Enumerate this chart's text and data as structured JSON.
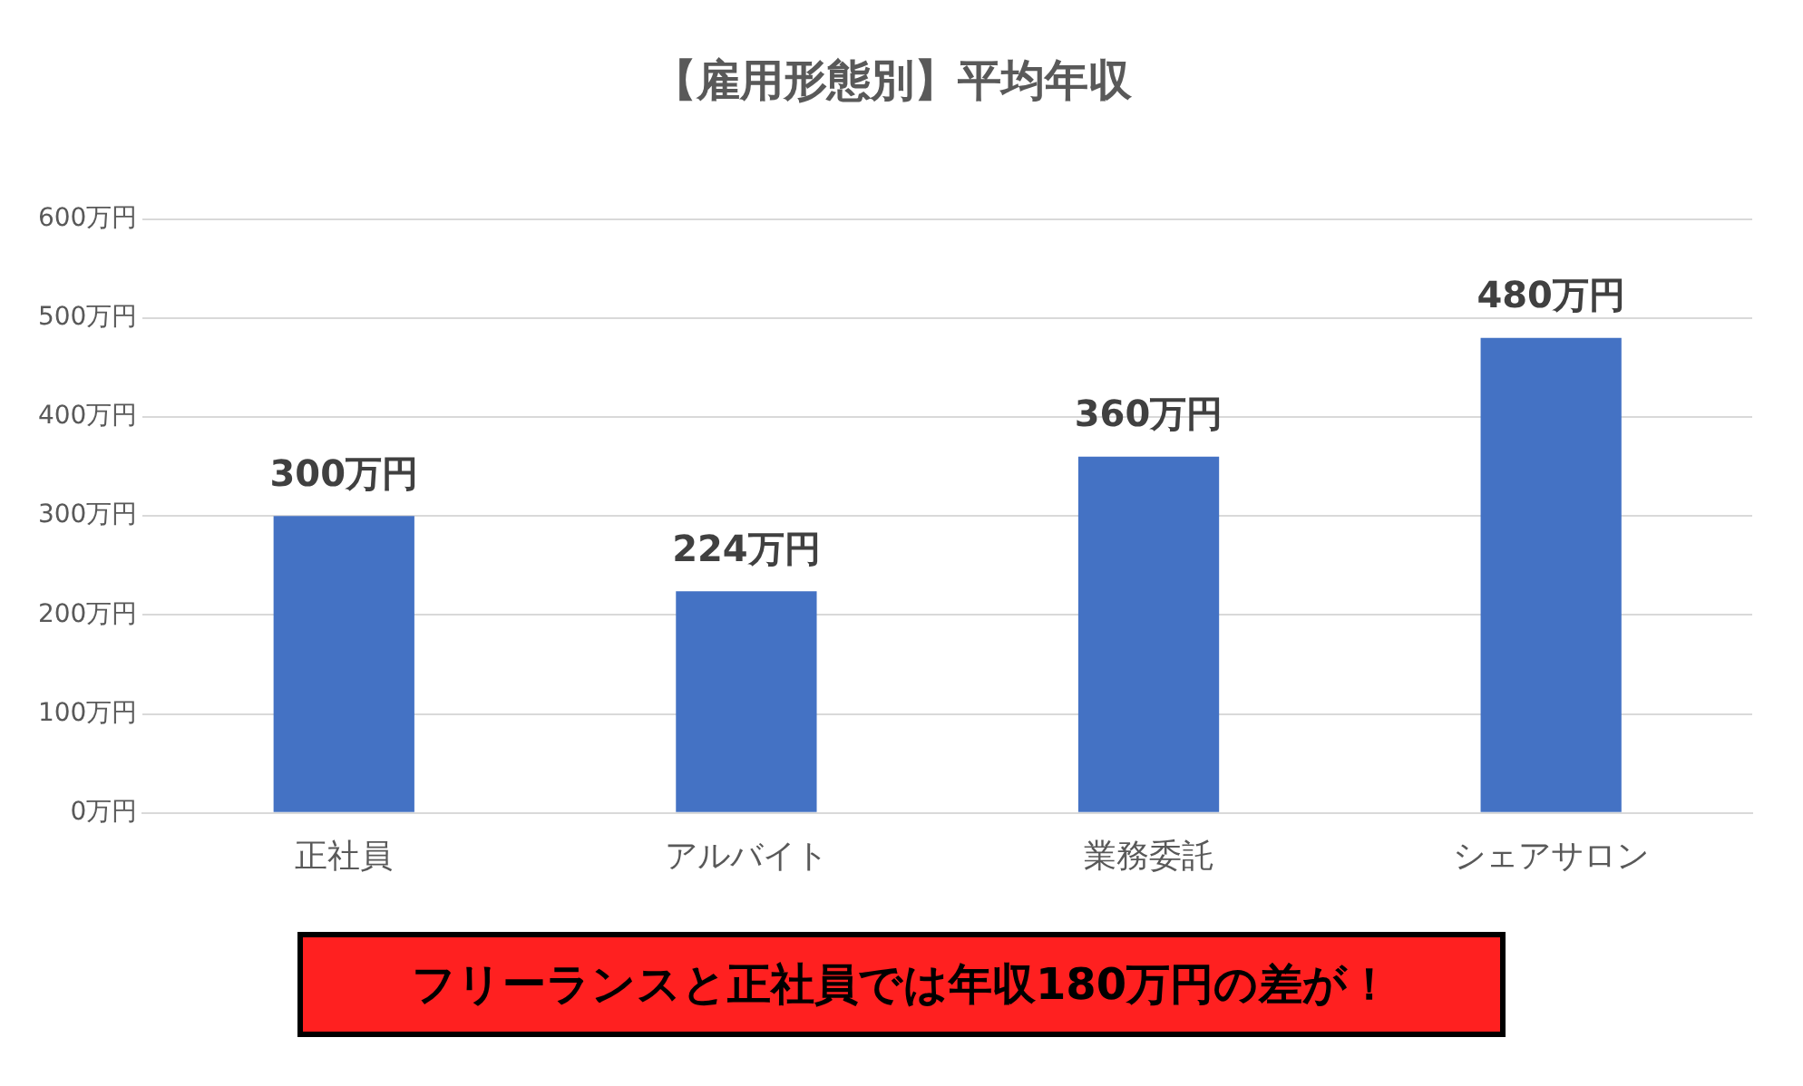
{
  "chart_data": {
    "type": "bar",
    "title": "【雇用形態別】平均年収",
    "categories": [
      "正社員",
      "アルバイト",
      "業務委託",
      "シェアサロン"
    ],
    "values": [
      300,
      224,
      360,
      480
    ],
    "value_labels": [
      "300万円",
      "224万円",
      "360万円",
      "480万円"
    ],
    "color": "#4472c4",
    "ylim": [
      0,
      600
    ],
    "yticks": [
      {
        "value": 0,
        "label": "0万円"
      },
      {
        "value": 100,
        "label": "100万円"
      },
      {
        "value": 200,
        "label": "200万円"
      },
      {
        "value": 300,
        "label": "300万円"
      },
      {
        "value": 400,
        "label": "400万円"
      },
      {
        "value": 500,
        "label": "500万円"
      },
      {
        "value": 600,
        "label": "600万円"
      }
    ],
    "grid": "y",
    "legend": false,
    "annotations": [
      "フリーランスと正社員では年収180万円の差が！"
    ]
  }
}
